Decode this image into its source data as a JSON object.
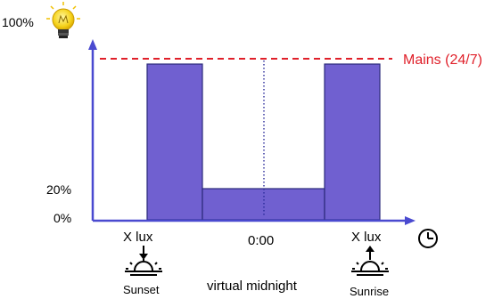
{
  "y_axis": {
    "top_label": "100%",
    "mid_label": "20%",
    "zero_label": "0%",
    "top_icon": "lightbulb-icon"
  },
  "mains": {
    "label": "Mains (24/7)",
    "level_percent": 100,
    "color": "#e0202a"
  },
  "x_axis": {
    "left_label": "X lux",
    "center_label": "0:00",
    "right_label": "X lux",
    "end_icon": "clock-icon"
  },
  "events": {
    "sunset_label": "Sunset",
    "sunset_icon": "sunset-icon",
    "midnight_label": "virtual midnight",
    "sunrise_label": "Sunrise",
    "sunrise_icon": "sunrise-icon"
  },
  "profile": {
    "bar_color": "#7060d0",
    "segments": [
      {
        "name": "evening-full",
        "level_percent": 100
      },
      {
        "name": "night-dimmed",
        "level_percent": 20
      },
      {
        "name": "morning-full",
        "level_percent": 100
      }
    ]
  }
}
